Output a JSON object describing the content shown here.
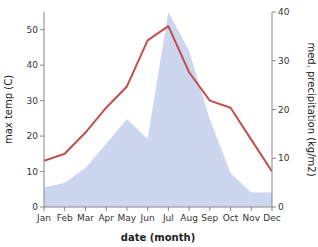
{
  "chart_data": {
    "type": "line",
    "categories": [
      "Jan",
      "Feb",
      "Mar",
      "Apr",
      "May",
      "Jun",
      "Jul",
      "Aug",
      "Sep",
      "Oct",
      "Nov",
      "Dec"
    ],
    "xlabel": "date (month)",
    "ylabel": "max temp (C)",
    "y2label": "med. precipitation (kg/m2)",
    "ylim": [
      0,
      55
    ],
    "yticks": [
      0,
      10,
      20,
      30,
      40,
      50
    ],
    "y2lim": [
      0,
      40
    ],
    "y2ticks": [
      0,
      10,
      20,
      30,
      40
    ],
    "grid": false,
    "series": [
      {
        "type": "area",
        "axis": "y2",
        "color": "#b8c4e8",
        "values": [
          4,
          5,
          8,
          13,
          18,
          14,
          40,
          32,
          18,
          7,
          3,
          3
        ]
      },
      {
        "type": "line",
        "color": "#c0504d",
        "values": [
          13,
          15,
          21,
          28,
          34,
          47,
          51,
          38,
          30,
          28,
          19,
          10
        ]
      }
    ]
  }
}
